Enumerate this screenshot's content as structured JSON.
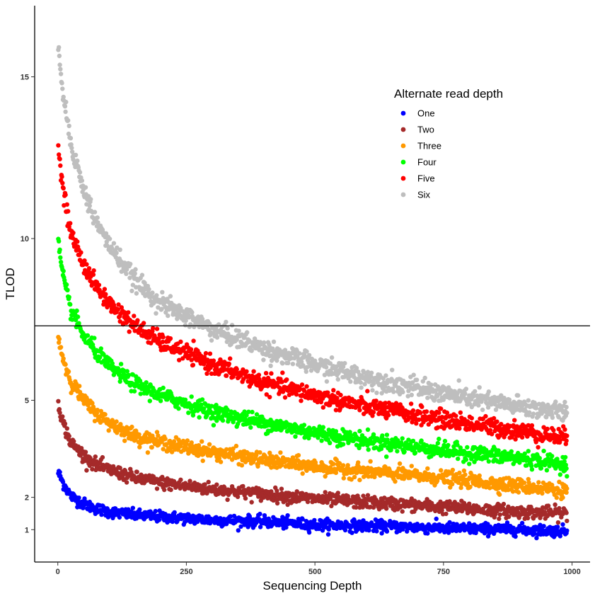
{
  "chart_data": {
    "type": "scatter",
    "xlabel": "Sequencing Depth",
    "ylabel": "TLOD",
    "xlim": [
      -45,
      1035
    ],
    "ylim": [
      0,
      17.2
    ],
    "x_ticks": [
      0,
      250,
      500,
      750,
      1000
    ],
    "y_ticks": [
      1,
      2,
      5,
      10,
      15
    ],
    "y_tick_labels": [
      "1",
      "2",
      "5",
      "10",
      "15"
    ],
    "hline": 7.3,
    "grid": false,
    "legend_title": "Alternate read depth",
    "legend_position": "top-right",
    "series": [
      {
        "name": "One",
        "color": "#0000ff",
        "curve": {
          "x": [
            0,
            10,
            25,
            50,
            75,
            100,
            150,
            200,
            300,
            400,
            500,
            600,
            750,
            900,
            1000
          ],
          "y": [
            2.8,
            2.45,
            2.05,
            1.8,
            1.65,
            1.55,
            1.45,
            1.4,
            1.3,
            1.25,
            1.15,
            1.12,
            1.05,
            1.0,
            0.95
          ]
        }
      },
      {
        "name": "Two",
        "color": "#a52a2a",
        "curve": {
          "x": [
            0,
            10,
            25,
            50,
            75,
            100,
            150,
            200,
            300,
            400,
            500,
            600,
            750,
            900,
            1000
          ],
          "y": [
            5.0,
            4.3,
            3.7,
            3.3,
            3.0,
            2.85,
            2.6,
            2.45,
            2.25,
            2.1,
            1.95,
            1.85,
            1.7,
            1.55,
            1.5
          ]
        }
      },
      {
        "name": "Three",
        "color": "#ff9900",
        "curve": {
          "x": [
            0,
            10,
            25,
            50,
            75,
            100,
            150,
            200,
            300,
            400,
            500,
            600,
            750,
            900,
            1000
          ],
          "y": [
            7.0,
            6.3,
            5.6,
            5.0,
            4.6,
            4.3,
            3.9,
            3.7,
            3.4,
            3.15,
            2.95,
            2.8,
            2.6,
            2.35,
            2.2
          ]
        }
      },
      {
        "name": "Four",
        "color": "#00ff00",
        "curve": {
          "x": [
            0,
            10,
            25,
            50,
            75,
            100,
            150,
            200,
            300,
            400,
            500,
            600,
            750,
            900,
            1000
          ],
          "y": [
            10.0,
            8.8,
            7.8,
            7.0,
            6.5,
            6.05,
            5.5,
            5.15,
            4.65,
            4.3,
            4.0,
            3.75,
            3.45,
            3.2,
            3.0
          ]
        }
      },
      {
        "name": "Five",
        "color": "#ff0000",
        "curve": {
          "x": [
            0,
            10,
            25,
            50,
            75,
            100,
            150,
            200,
            300,
            400,
            500,
            600,
            750,
            900,
            1000
          ],
          "y": [
            12.9,
            11.5,
            10.2,
            9.2,
            8.5,
            8.0,
            7.3,
            6.8,
            6.1,
            5.55,
            5.15,
            4.8,
            4.4,
            4.05,
            3.8
          ]
        }
      },
      {
        "name": "Six",
        "color": "#bebebe",
        "curve": {
          "x": [
            0,
            10,
            25,
            50,
            75,
            100,
            150,
            200,
            300,
            400,
            500,
            600,
            750,
            900,
            1000
          ],
          "y": [
            16.3,
            14.5,
            13.0,
            11.5,
            10.5,
            9.8,
            8.7,
            8.0,
            7.2,
            6.6,
            6.1,
            5.7,
            5.2,
            4.8,
            4.6
          ]
        }
      }
    ]
  }
}
